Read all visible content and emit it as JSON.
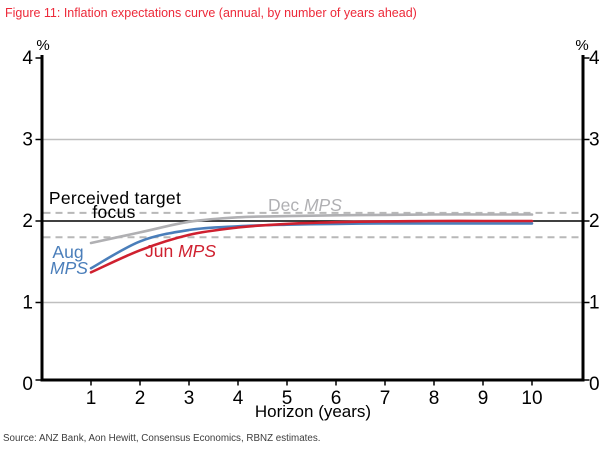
{
  "figure": {
    "title": "Figure 11: Inflation expectations curve (annual, by number of years ahead)",
    "source": "Source: ANZ Bank, Aon Hewitt, Consensus Economics, RBNZ estimates."
  },
  "colors": {
    "title_red": "#ed2939",
    "jun_mps_red": "#cf202f",
    "aug_mps_blue": "#4a7eba",
    "dec_mps_gray": "#b0b0b3",
    "dashed_line_gray": "#b8b8b8",
    "gridline_gray": "#bfbfbf",
    "target_line_black": "#000000",
    "axis_black": "#000000",
    "source_text": "#3d3d3d"
  },
  "chart_data": {
    "type": "line",
    "title": "Inflation expectations curve (annual, by number of years ahead)",
    "xlabel": "Horizon (years)",
    "ylabel_left": "%",
    "ylabel_right": "%",
    "x": [
      1,
      2,
      3,
      4,
      5,
      6,
      7,
      8,
      9,
      10
    ],
    "xticks": [
      1,
      2,
      3,
      4,
      5,
      6,
      7,
      8,
      9,
      10
    ],
    "yticks": [
      0,
      1,
      2,
      3,
      4
    ],
    "xlim": [
      0,
      11.05
    ],
    "ylim": [
      0,
      4
    ],
    "gridlines": [
      1,
      3
    ],
    "reference_lines": [
      {
        "style": "dashed",
        "value": 2.1,
        "color": "#b8b8b8"
      },
      {
        "style": "dashed",
        "value": 1.8,
        "color": "#b8b8b8"
      },
      {
        "style": "solid",
        "value": 2.0,
        "color": "#000000",
        "label": "Perceived target focus"
      }
    ],
    "annotation": {
      "line1": "Perceived target",
      "line2": "focus"
    },
    "legend_position": "inline-labels",
    "series": [
      {
        "name": "Jun MPS",
        "label_prefix": "Jun ",
        "label_suffix": "MPS",
        "color": "#cf202f",
        "values": [
          1.37,
          1.64,
          1.83,
          1.92,
          1.965,
          1.985,
          1.995,
          2.0,
          2.0,
          2.0
        ]
      },
      {
        "name": "Aug MPS",
        "label_prefix": "Aug",
        "label_suffix": "MPS",
        "color": "#4a7eba",
        "values": [
          1.42,
          1.75,
          1.89,
          1.935,
          1.955,
          1.965,
          1.97,
          1.97,
          1.97,
          1.97
        ]
      },
      {
        "name": "Dec MPS",
        "label_prefix": "Dec ",
        "label_suffix": "MPS",
        "color": "#b0b0b3",
        "values": [
          1.73,
          1.86,
          1.99,
          2.045,
          2.06,
          2.07,
          2.075,
          2.08,
          2.08,
          2.08
        ]
      }
    ]
  }
}
